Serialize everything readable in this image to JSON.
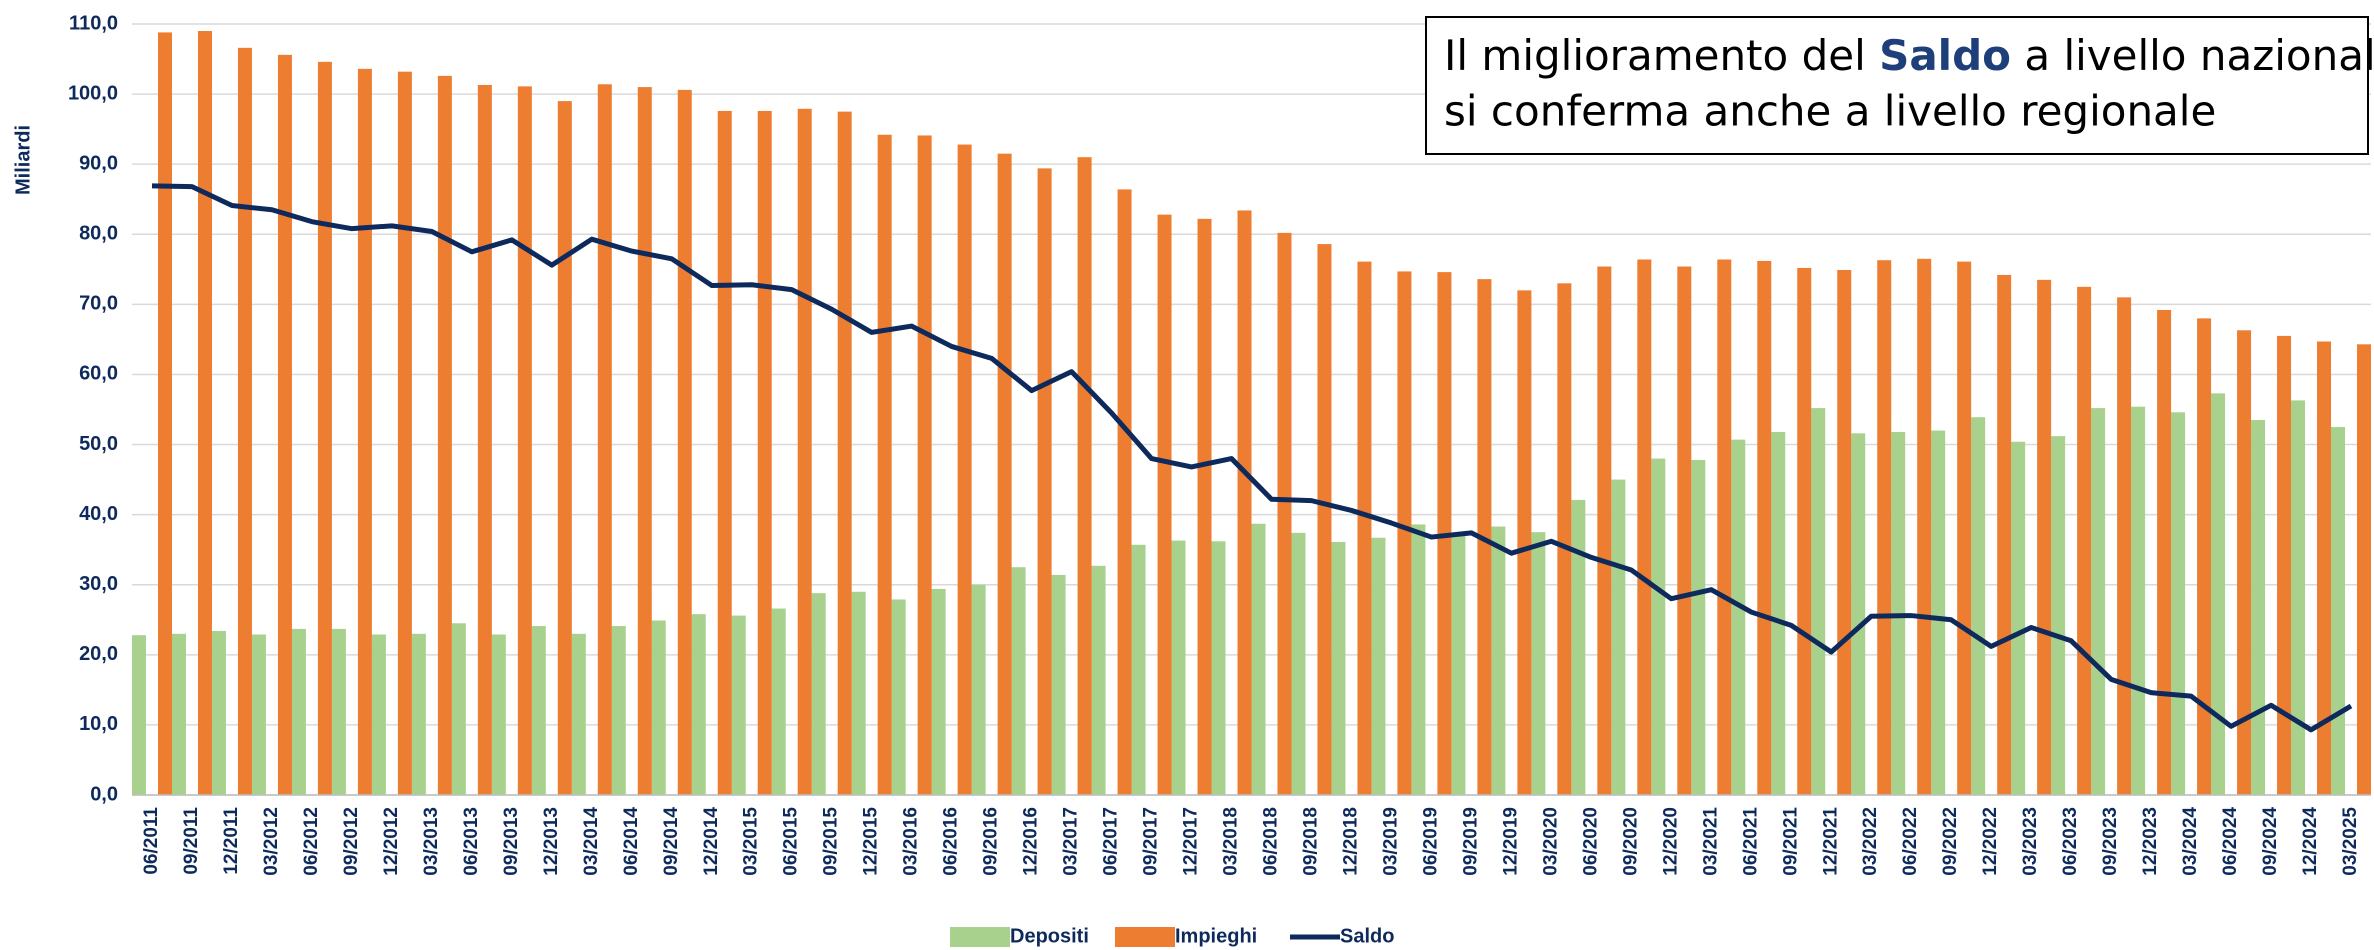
{
  "chart_data": {
    "type": "bar_line",
    "ylabel": "Miliardi",
    "annotation": {
      "line1": [
        "Il miglioramento del ",
        "Saldo",
        " a livello nazionale"
      ],
      "line2": "si conferma anche a livello regionale"
    },
    "categories": [
      "06/2011",
      "09/2011",
      "12/2011",
      "03/2012",
      "06/2012",
      "09/2012",
      "12/2012",
      "03/2013",
      "06/2013",
      "09/2013",
      "12/2013",
      "03/2014",
      "06/2014",
      "09/2014",
      "12/2014",
      "03/2015",
      "06/2015",
      "09/2015",
      "12/2015",
      "03/2016",
      "06/2016",
      "09/2016",
      "12/2016",
      "03/2017",
      "06/2017",
      "09/2017",
      "12/2017",
      "03/2018",
      "06/2018",
      "09/2018",
      "12/2018",
      "03/2019",
      "06/2019",
      "09/2019",
      "12/2019",
      "03/2020",
      "06/2020",
      "09/2020",
      "12/2020",
      "03/2021",
      "06/2021",
      "09/2021",
      "12/2021",
      "03/2022",
      "06/2022",
      "09/2022",
      "12/2022",
      "03/2023",
      "06/2023",
      "09/2023",
      "12/2023",
      "03/2024",
      "06/2024",
      "09/2024",
      "12/2024",
      "03/2025"
    ],
    "series": [
      {
        "name": "Depositi",
        "type": "bar",
        "color": "#a9d18e",
        "values": [
          22.8,
          23,
          23.4,
          22.9,
          23.7,
          23.7,
          22.9,
          23,
          24.5,
          22.9,
          24.1,
          23,
          24.1,
          24.9,
          25.8,
          25.6,
          26.6,
          28.8,
          29,
          27.9,
          29.4,
          30,
          32.5,
          31.4,
          32.7,
          35.7,
          36.3,
          36.2,
          38.7,
          37.4,
          36.1,
          36.7,
          38.6,
          37.2,
          38.3,
          37.5,
          42.1,
          45,
          48,
          47.8,
          50.7,
          51.8,
          55.2,
          51.6,
          51.8,
          52,
          53.9,
          50.4,
          51.2,
          55.2,
          55.4,
          54.6,
          57.3,
          53.5,
          56.3,
          52.5
        ]
      },
      {
        "name": "Impieghi",
        "type": "bar",
        "color": "#ed7d31",
        "values": [
          108.8,
          109,
          106.6,
          105.6,
          104.6,
          103.6,
          103.2,
          102.6,
          101.3,
          101.1,
          99,
          101.4,
          101,
          100.6,
          97.6,
          97.6,
          97.9,
          97.5,
          94.2,
          94.1,
          92.8,
          91.5,
          89.4,
          91,
          86.4,
          82.8,
          82.2,
          83.4,
          80.2,
          78.6,
          76.1,
          74.7,
          74.6,
          73.6,
          72,
          73,
          75.4,
          76.4,
          75.4,
          76.4,
          76.2,
          75.2,
          74.9,
          76.3,
          76.5,
          76.1,
          74.2,
          73.5,
          72.5,
          71,
          69.2,
          68,
          66.3,
          65.5,
          64.7,
          64.3
        ]
      },
      {
        "name": "Saldo",
        "type": "line",
        "color": "#0e2a5c",
        "values": [
          86.9,
          86.8,
          84.1,
          83.5,
          81.8,
          80.8,
          81.2,
          80.4,
          77.5,
          79.2,
          75.6,
          79.3,
          77.6,
          76.5,
          72.7,
          72.8,
          72.1,
          69.3,
          66,
          66.9,
          64,
          62.3,
          57.7,
          60.4,
          54.5,
          48,
          46.8,
          48,
          42.2,
          42,
          40.6,
          38.8,
          36.8,
          37.4,
          34.5,
          36.2,
          33.9,
          32.1,
          28,
          29.3,
          26.1,
          24.2,
          20.4,
          25.5,
          25.6,
          25,
          21.2,
          23.9,
          22,
          16.5,
          14.6,
          14.1,
          9.8,
          12.8,
          9.3,
          12.7
        ]
      }
    ],
    "ylim": [
      0,
      110
    ],
    "yticks": [
      {
        "value": 0,
        "label": "0,0"
      },
      {
        "value": 10,
        "label": "10,0"
      },
      {
        "value": 20,
        "label": "20,0"
      },
      {
        "value": 30,
        "label": "30,0"
      },
      {
        "value": 40,
        "label": "40,0"
      },
      {
        "value": 50,
        "label": "50,0"
      },
      {
        "value": 60,
        "label": "60,0"
      },
      {
        "value": 70,
        "label": "70,0"
      },
      {
        "value": 80,
        "label": "80,0"
      },
      {
        "value": 90,
        "label": "90,0"
      },
      {
        "value": 100,
        "label": "100,0"
      },
      {
        "value": 110,
        "label": "110,0"
      }
    ],
    "grid": true
  }
}
